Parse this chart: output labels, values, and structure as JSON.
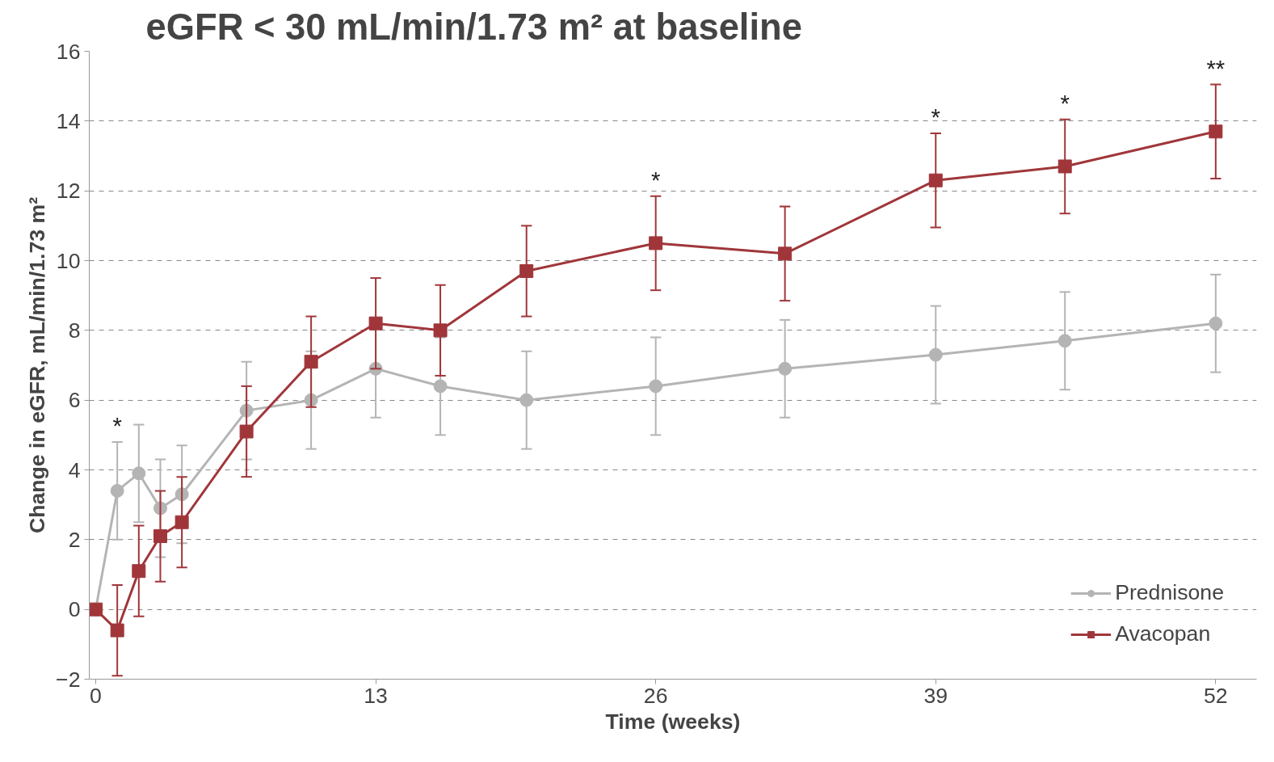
{
  "chart_data": {
    "type": "line",
    "title": "eGFR < 30 mL/min/1.73 m² at baseline",
    "xlabel": "Time (weeks)",
    "ylabel": "Change in eGFR, mL/min/1.73 m²",
    "x": [
      0,
      1,
      2,
      3,
      4,
      7,
      10,
      13,
      16,
      20,
      26,
      32,
      39,
      45,
      52
    ],
    "series": [
      {
        "name": "Prednisone",
        "color": "#b4b4b4",
        "marker": "circle",
        "values": [
          0,
          3.4,
          3.9,
          2.9,
          3.3,
          5.7,
          6.0,
          6.9,
          6.4,
          6.0,
          6.4,
          6.9,
          7.3,
          7.7,
          8.2
        ],
        "errors": [
          null,
          1.4,
          1.4,
          1.4,
          1.4,
          1.4,
          1.4,
          1.4,
          1.4,
          1.4,
          1.4,
          1.4,
          1.4,
          1.4,
          1.4
        ]
      },
      {
        "name": "Avacopan",
        "color": "#a0363a",
        "marker": "square",
        "values": [
          0,
          -0.6,
          1.1,
          2.1,
          2.5,
          5.1,
          7.1,
          8.2,
          8.0,
          9.7,
          10.5,
          10.2,
          12.3,
          12.7,
          13.7
        ],
        "errors": [
          null,
          1.3,
          1.3,
          1.3,
          1.3,
          1.3,
          1.3,
          1.3,
          1.3,
          1.3,
          1.35,
          1.35,
          1.35,
          1.35,
          1.35
        ]
      }
    ],
    "annotations": [
      {
        "text": "*",
        "x": 1,
        "y": 4.8
      },
      {
        "text": "*",
        "x": 26,
        "y": 11.85
      },
      {
        "text": "*",
        "x": 39,
        "y": 13.65
      },
      {
        "text": "*",
        "x": 45,
        "y": 14.05
      },
      {
        "text": "**",
        "x": 52,
        "y": 15.05
      }
    ],
    "xlim": [
      -0.3,
      53.9
    ],
    "ylim": [
      -2,
      16
    ],
    "xticks": [
      0,
      13,
      26,
      39,
      52
    ],
    "yticks": [
      -2,
      0,
      2,
      4,
      6,
      8,
      10,
      12,
      14,
      16
    ],
    "grid": "y",
    "legend": "bottom right",
    "line_style": "solid"
  }
}
